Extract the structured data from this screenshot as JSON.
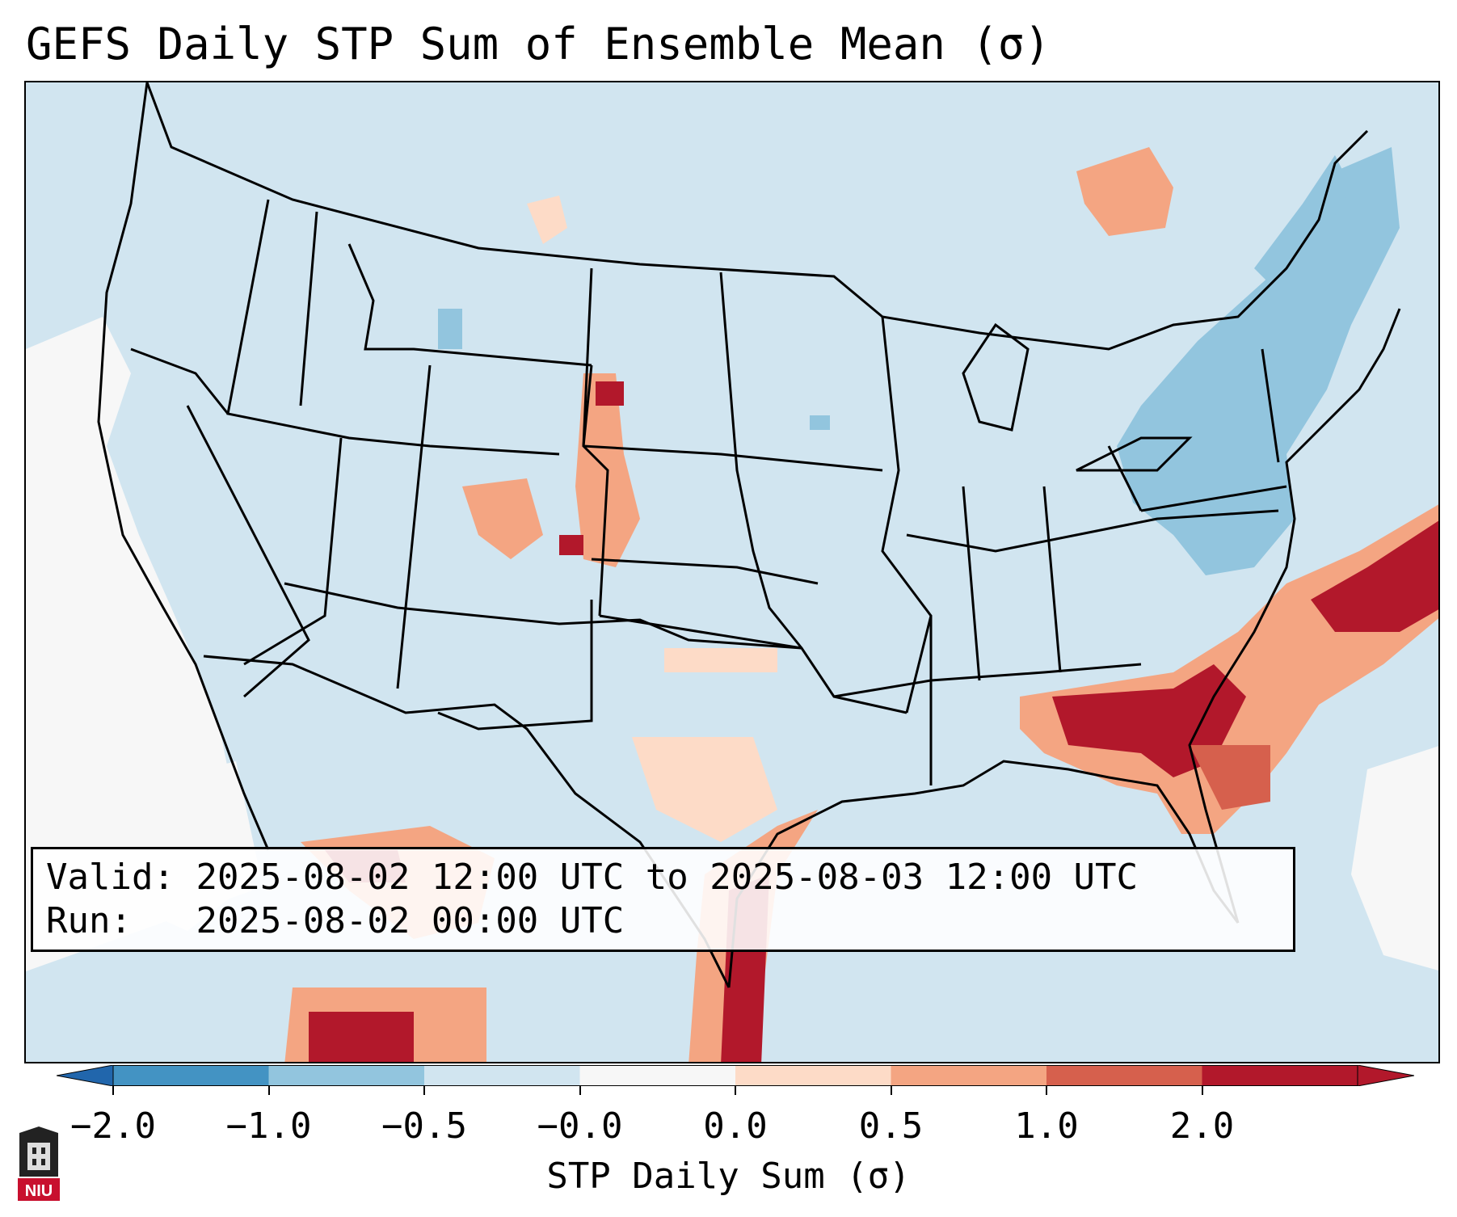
{
  "title": "GEFS Daily STP Sum of Ensemble Mean (σ)",
  "info": {
    "valid_label": "Valid:",
    "valid_value": "2025-08-02 12:00 UTC to 2025-08-03 12:00 UTC",
    "run_label": "Run:",
    "run_value": "2025-08-02 00:00 UTC"
  },
  "colorbar": {
    "label": "STP Daily Sum (σ)",
    "ticks": [
      "−2.0",
      "−1.0",
      "−0.5",
      "−0.0",
      "0.0",
      "0.5",
      "1.0",
      "2.0"
    ],
    "colors": [
      "#4393c3",
      "#92c5de",
      "#d1e5f0",
      "#f7f7f7",
      "#fddbc7",
      "#f4a582",
      "#d6604d",
      "#b2182b"
    ],
    "under_color": "#2166ac",
    "over_color": "#b2182b"
  },
  "map": {
    "background_color": "#d1e5f0",
    "regions": [
      {
        "name": "gulf-coast-georgia-florida",
        "level": "above 2.0"
      },
      {
        "name": "atlantic-offshore",
        "level": "1.0 to 2.0+"
      },
      {
        "name": "texas-coast",
        "level": "1.0 to 2.0+"
      },
      {
        "name": "northern-mexico",
        "level": "1.0 to 2.0+"
      },
      {
        "name": "high-plains-colorado",
        "level": "0.0 to 2.0"
      },
      {
        "name": "northeast-new-york",
        "level": "-0.5 to -1.0"
      },
      {
        "name": "pacific-ocean",
        "level": "-0.0 to 0.0"
      }
    ]
  },
  "logo": {
    "text": "NIU",
    "color": "#c8102e"
  }
}
